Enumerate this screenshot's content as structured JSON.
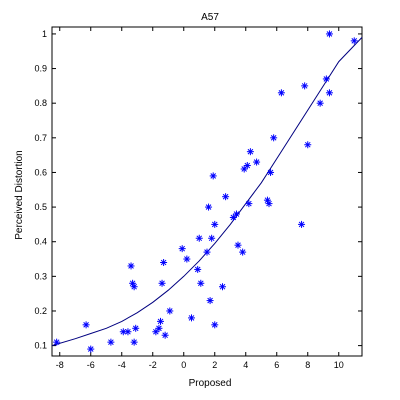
{
  "chart_data": {
    "type": "scatter",
    "title": "A57",
    "xlabel": "Proposed",
    "ylabel": "Perceived Distortion",
    "xlim": [
      -8.5,
      11.5
    ],
    "ylim": [
      0.07,
      1.02
    ],
    "xticks": [
      "-8",
      "-6",
      "-4",
      "-2",
      "0",
      "2",
      "4",
      "6",
      "8",
      "10"
    ],
    "yticks": [
      "0.1",
      "0.2",
      "0.3",
      "0.4",
      "0.5",
      "0.6",
      "0.7",
      "0.8",
      "0.9",
      "1"
    ],
    "grid": false,
    "legend": "none",
    "colors": {
      "points": "#0000ff",
      "curve": "#000080",
      "axis": "#000000"
    },
    "marker": "asterisk",
    "series": [
      {
        "points": [
          [
            -8.2,
            0.11
          ],
          [
            -6.3,
            0.16
          ],
          [
            -6.0,
            0.09
          ],
          [
            -4.7,
            0.11
          ],
          [
            -3.9,
            0.14
          ],
          [
            -3.6,
            0.14
          ],
          [
            -3.4,
            0.33
          ],
          [
            -3.3,
            0.28
          ],
          [
            -3.2,
            0.27
          ],
          [
            -3.1,
            0.15
          ],
          [
            -3.2,
            0.11
          ],
          [
            -1.8,
            0.14
          ],
          [
            -1.6,
            0.15
          ],
          [
            -1.5,
            0.17
          ],
          [
            -1.4,
            0.28
          ],
          [
            -1.3,
            0.34
          ],
          [
            -1.2,
            0.13
          ],
          [
            -0.9,
            0.2
          ],
          [
            -0.1,
            0.38
          ],
          [
            0.2,
            0.35
          ],
          [
            0.5,
            0.18
          ],
          [
            0.9,
            0.32
          ],
          [
            1.0,
            0.41
          ],
          [
            1.1,
            0.28
          ],
          [
            1.5,
            0.37
          ],
          [
            1.6,
            0.5
          ],
          [
            1.7,
            0.23
          ],
          [
            1.8,
            0.41
          ],
          [
            1.9,
            0.59
          ],
          [
            2.0,
            0.16
          ],
          [
            2.0,
            0.45
          ],
          [
            2.5,
            0.27
          ],
          [
            2.7,
            0.53
          ],
          [
            3.2,
            0.47
          ],
          [
            3.4,
            0.48
          ],
          [
            3.5,
            0.39
          ],
          [
            3.8,
            0.37
          ],
          [
            3.9,
            0.61
          ],
          [
            4.1,
            0.62
          ],
          [
            4.2,
            0.51
          ],
          [
            4.3,
            0.66
          ],
          [
            4.7,
            0.63
          ],
          [
            5.4,
            0.52
          ],
          [
            5.5,
            0.51
          ],
          [
            5.6,
            0.6
          ],
          [
            5.8,
            0.7
          ],
          [
            6.3,
            0.83
          ],
          [
            7.6,
            0.45
          ],
          [
            7.8,
            0.85
          ],
          [
            8.0,
            0.68
          ],
          [
            8.8,
            0.8
          ],
          [
            9.2,
            0.87
          ],
          [
            9.4,
            0.83
          ],
          [
            9.4,
            1.0
          ],
          [
            11.0,
            0.98
          ]
        ]
      }
    ],
    "fit_curve": {
      "x": [
        -8.5,
        -7,
        -6,
        -5,
        -4,
        -3,
        -2,
        -1,
        0,
        1,
        2,
        3,
        4,
        5,
        6,
        7,
        8,
        9,
        10,
        11.5
      ],
      "y": [
        0.1,
        0.12,
        0.135,
        0.15,
        0.17,
        0.195,
        0.225,
        0.26,
        0.3,
        0.345,
        0.395,
        0.45,
        0.51,
        0.57,
        0.64,
        0.71,
        0.78,
        0.85,
        0.92,
        0.99
      ]
    }
  }
}
